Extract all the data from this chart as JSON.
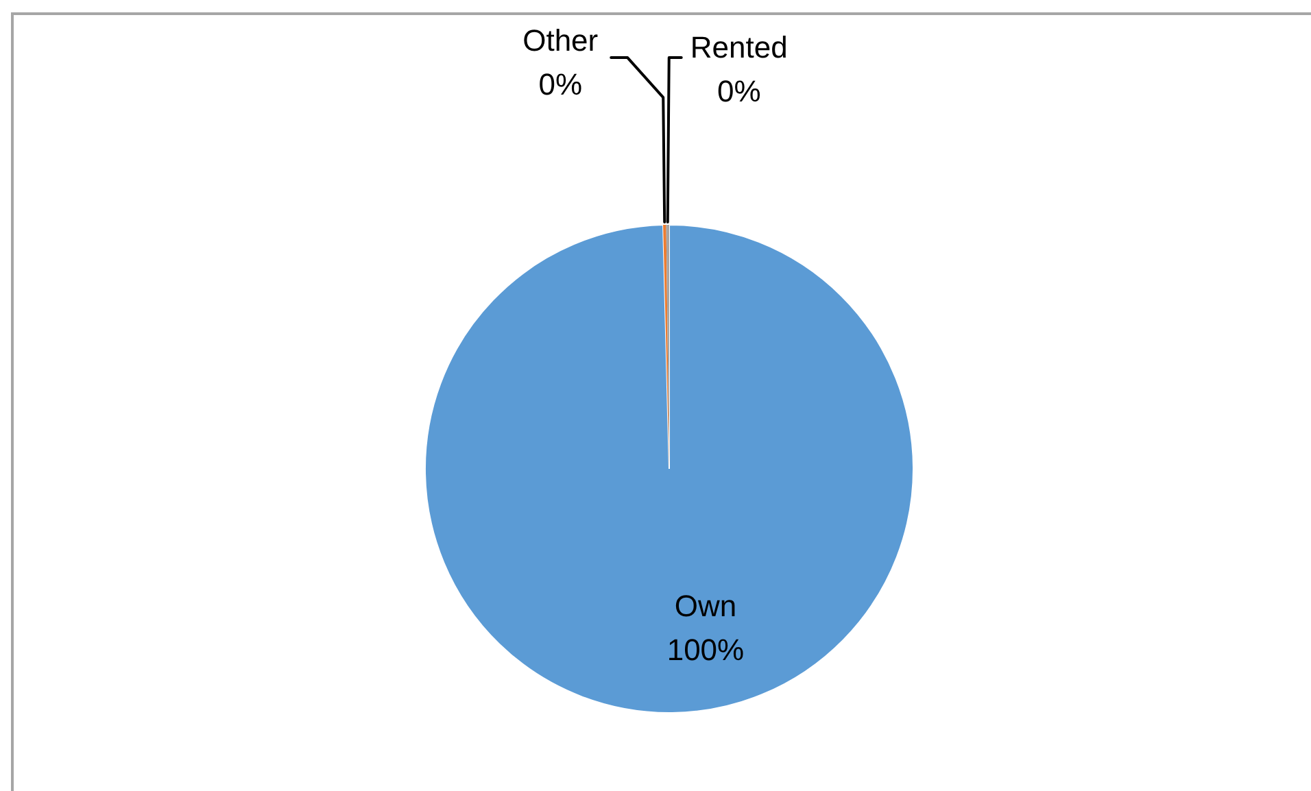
{
  "chart_data": {
    "type": "pie",
    "categories": [
      "Own",
      "Other",
      "Rented"
    ],
    "values": [
      99.6,
      0.2,
      0.2
    ],
    "colors": [
      "#5b9bd5",
      "#ed7d31",
      "#a5a5a5"
    ],
    "value_labels": [
      "100%",
      "0%",
      "0%"
    ],
    "legend": false
  }
}
